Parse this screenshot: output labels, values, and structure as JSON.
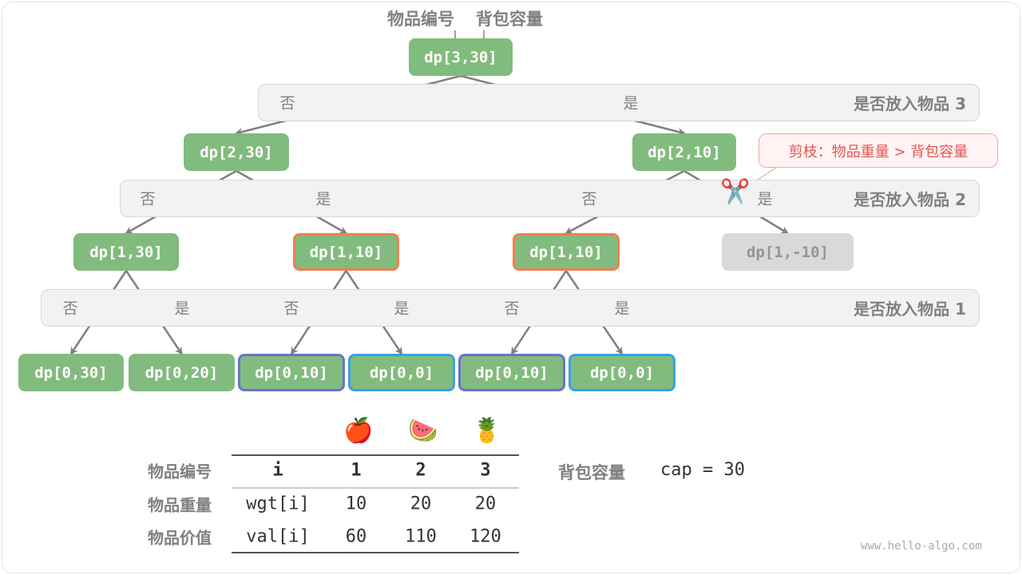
{
  "top_labels": {
    "item_index": "物品编号",
    "capacity": "背包容量"
  },
  "bands": [
    {
      "title": "是否放入物品 3",
      "choices": [
        "否",
        "是"
      ]
    },
    {
      "title": "是否放入物品 2",
      "choices": [
        "否",
        "是",
        "否",
        "是"
      ]
    },
    {
      "title": "是否放入物品 1",
      "choices": [
        "否",
        "是",
        "否",
        "是",
        "否",
        "是"
      ]
    }
  ],
  "nodes": [
    {
      "label": "dp[3,30]",
      "state": "normal"
    },
    {
      "label": "dp[2,30]",
      "state": "normal"
    },
    {
      "label": "dp[2,10]",
      "state": "normal"
    },
    {
      "label": "dp[1,30]",
      "state": "normal"
    },
    {
      "label": "dp[1,10]",
      "state": "repeated"
    },
    {
      "label": "dp[1,10]",
      "state": "repeated"
    },
    {
      "label": "dp[1,-10]",
      "state": "pruned"
    },
    {
      "label": "dp[0,30]",
      "state": "normal"
    },
    {
      "label": "dp[0,20]",
      "state": "normal"
    },
    {
      "label": "dp[0,10]",
      "state": "repeated-a"
    },
    {
      "label": "dp[0,0]",
      "state": "repeated-b"
    },
    {
      "label": "dp[0,10]",
      "state": "repeated-a"
    },
    {
      "label": "dp[0,0]",
      "state": "repeated-b"
    }
  ],
  "prune_note": "剪枝：物品重量 > 背包容量",
  "icons": {
    "prune": "scissors-icon",
    "items": [
      "apple-icon",
      "watermelon-icon",
      "pineapple-icon"
    ]
  },
  "table": {
    "row_labels": [
      "物品编号",
      "物品重量",
      "物品价值"
    ],
    "rows": [
      [
        "i",
        "1",
        "2",
        "3"
      ],
      [
        "wgt[i]",
        "10",
        "20",
        "20"
      ],
      [
        "val[i]",
        "60",
        "110",
        "120"
      ]
    ]
  },
  "capacity": {
    "label": "背包容量",
    "value": "cap = 30"
  },
  "watermark": "www.hello-algo.com",
  "colors": {
    "node": "#82bb7e",
    "repeated": "#f07f4f",
    "repeated_a": "#6a72cc",
    "repeated_b": "#3a9fe4",
    "pruned": "#d9d9d9",
    "prune_note": "#e55555"
  }
}
